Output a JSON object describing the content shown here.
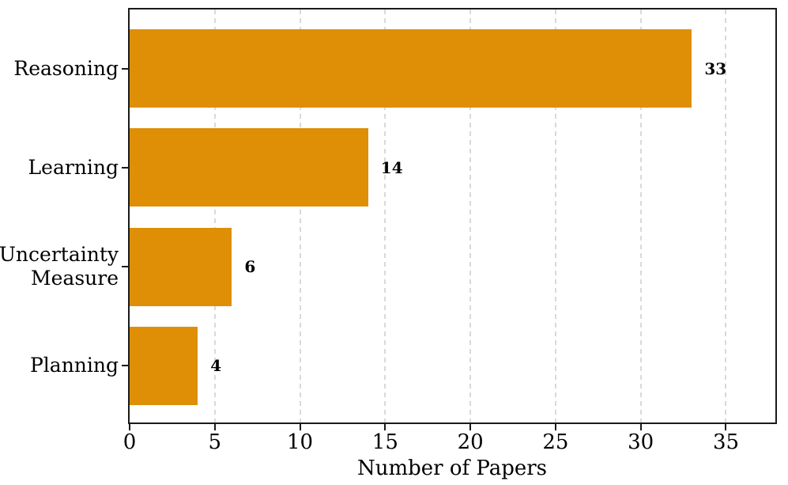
{
  "chart_data": {
    "type": "bar",
    "orientation": "horizontal",
    "categories": [
      "Reasoning",
      "Learning",
      "Uncertainty Measure",
      "Planning"
    ],
    "category_lines": [
      [
        "Reasoning"
      ],
      [
        "Learning"
      ],
      [
        "Uncertainty",
        "Measure"
      ],
      [
        "Planning"
      ]
    ],
    "values": [
      33,
      14,
      6,
      4
    ],
    "value_labels": [
      "33",
      "14",
      "6",
      "4"
    ],
    "xlabel": "Number of Papers",
    "x_ticks": [
      0,
      5,
      10,
      15,
      20,
      25,
      30,
      35
    ],
    "xlim": [
      0,
      37.9
    ],
    "grid": {
      "axis": "x",
      "style": "dashed"
    },
    "legend": "none",
    "title": ""
  },
  "colors": {
    "bar": "#DE8F05",
    "spine": "#1A1A1A",
    "gridline": "#D9D9D9",
    "text": "#000000",
    "background": "#FFFFFF"
  }
}
